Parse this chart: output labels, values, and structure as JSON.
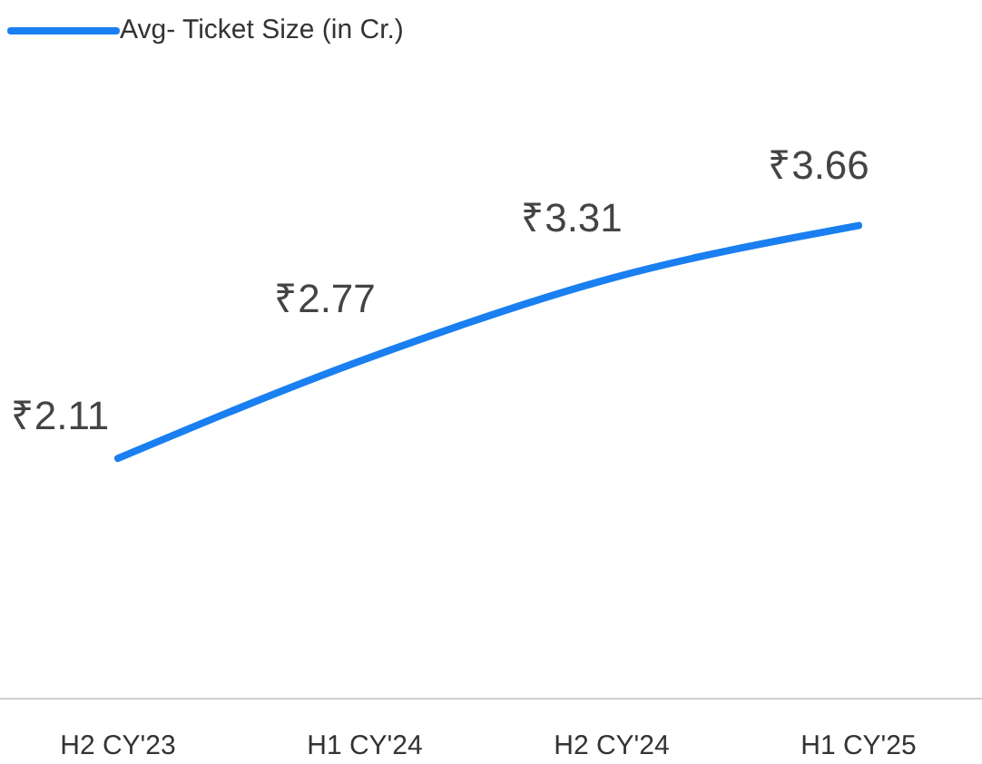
{
  "chart_data": {
    "type": "line",
    "categories": [
      "H2 CY'23",
      "H1 CY'24",
      "H2 CY'24",
      "H1 CY'25"
    ],
    "series": [
      {
        "name": "Avg- Ticket Size (in Cr.)",
        "color": "#1a7ff0",
        "values": [
          2.11,
          2.77,
          3.31,
          3.66
        ],
        "value_labels": [
          "₹2.11",
          "₹2.77",
          "₹3.31",
          "₹3.66"
        ]
      }
    ],
    "legend": "top left",
    "marker": "none",
    "grid": false
  }
}
